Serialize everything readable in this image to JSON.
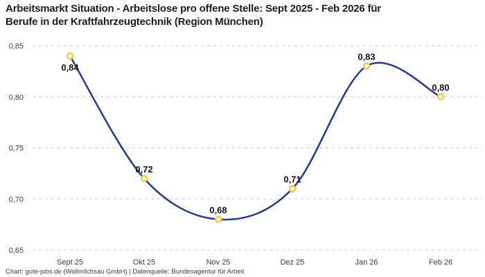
{
  "header": {
    "title_lines": [
      "Arbeitsmarkt Situation - Arbeitslose pro offene Stelle: Sept 2025 - Feb 2026 für",
      "Berufe in der Kraftfahrzeugtechnik (Region München)"
    ]
  },
  "footer": {
    "credit": "Chart: gute-jobs.de (Wollmilchsau GmbH) | Datenquelle: Bundesagentur für Arbeit"
  },
  "colors": {
    "line": "#21389c",
    "marker": "#ffc640",
    "marker_fill": "#ffffff",
    "grid": "#c9c9c9",
    "value_label": "#111111",
    "axis_label": "#3c3c3c",
    "title": "#1d1d1d",
    "background": "#ffffff"
  },
  "chart_data": {
    "type": "line",
    "title": "Arbeitsmarkt Situation - Arbeitslose pro offene Stelle: Sept 2025 - Feb 2026 für Berufe in der Kraftfahrzeugtechnik (Region München)",
    "xlabel": "",
    "ylabel": "",
    "categories": [
      "Sept 25",
      "Okt 25",
      "Nov 25",
      "Dez 25",
      "Jan 26",
      "Feb 26"
    ],
    "values": [
      0.84,
      0.72,
      0.68,
      0.71,
      0.83,
      0.8
    ],
    "value_labels": [
      "0,84",
      "0,72",
      "0,68",
      "0,71",
      "0,83",
      "0,80"
    ],
    "ylim": [
      0.65,
      0.85
    ],
    "yticks": [
      0.85,
      0.8,
      0.75,
      0.7,
      0.65
    ],
    "ytick_labels": [
      "0,85",
      "0,80",
      "0,75",
      "0,70",
      "0,65"
    ],
    "grid": "horizontal-dashed",
    "legend": "none",
    "curve": "smooth",
    "source": "Chart: gute-jobs.de (Wollmilchsau GmbH) | Datenquelle: Bundesagentur für Arbeit"
  }
}
